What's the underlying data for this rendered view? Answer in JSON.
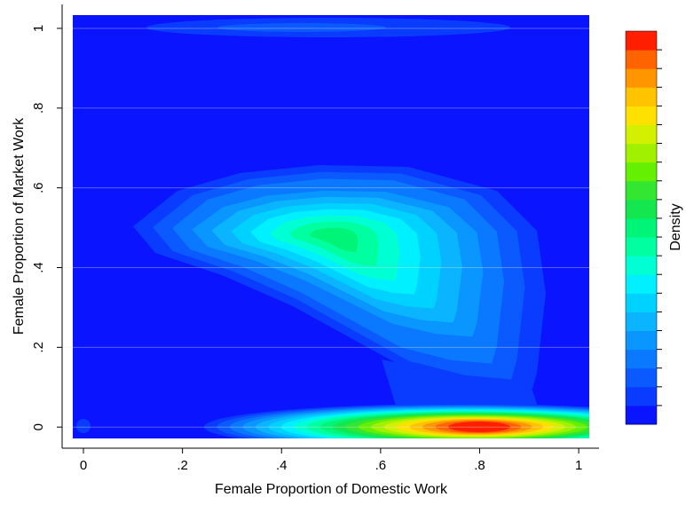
{
  "chart_data": {
    "type": "contour",
    "x_label": "Female Proportion of Domestic Work",
    "y_label": "Female Proportion of Market Work",
    "colorbar_label": "Density",
    "xlim": [
      -0.043,
      1.041
    ],
    "ylim": [
      -0.053,
      1.06
    ],
    "xticks": [
      0,
      {
        "value": 0.2,
        "label": ".2"
      },
      {
        "value": 0.4,
        "label": ".4"
      },
      {
        "value": 0.6,
        "label": ".6"
      },
      {
        "value": 0.8,
        "label": ".8"
      },
      1
    ],
    "yticks": [
      0,
      {
        "value": 0.2,
        "label": ".2"
      },
      {
        "value": 0.4,
        "label": ".4"
      },
      {
        "value": 0.6,
        "label": ".6"
      },
      {
        "value": 0.8,
        "label": ".8"
      },
      1
    ],
    "grid": true,
    "colors": [
      "#0a14ff",
      "#0a3cff",
      "#0a5aff",
      "#0a78ff",
      "#0a96ff",
      "#0ab4ff",
      "#00d2ff",
      "#00f0ff",
      "#00ffd2",
      "#00ffa0",
      "#00f578",
      "#14e650",
      "#32e632",
      "#64f000",
      "#a0f000",
      "#d2f000",
      "#ffe100",
      "#ffc300",
      "#ff9600",
      "#ff6400",
      "#ff1e00"
    ]
  }
}
